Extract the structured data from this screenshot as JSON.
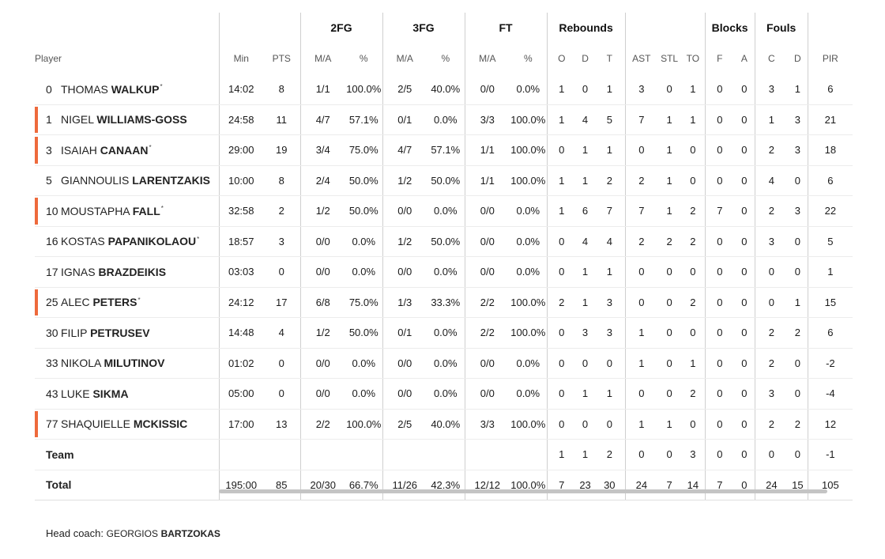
{
  "header": {
    "groups": {
      "fg2": "2FG",
      "fg3": "3FG",
      "ft": "FT",
      "rebounds": "Rebounds",
      "blocks": "Blocks",
      "fouls": "Fouls"
    },
    "columns": {
      "player": "Player",
      "min": "Min",
      "pts": "PTS",
      "fg2_ma": "M/A",
      "fg2_pct": "%",
      "fg3_ma": "M/A",
      "fg3_pct": "%",
      "ft_ma": "M/A",
      "ft_pct": "%",
      "reb_o": "O",
      "reb_d": "D",
      "reb_t": "T",
      "ast": "AST",
      "stl": "STL",
      "to": "TO",
      "blk_f": "F",
      "blk_a": "A",
      "foul_c": "C",
      "foul_d": "D",
      "pir": "PIR"
    }
  },
  "players": [
    {
      "num": "0",
      "first": "THOMAS",
      "last": "WALKUP",
      "star": "*",
      "starter": false,
      "min": "14:02",
      "pts": "8",
      "fg2_ma": "1/1",
      "fg2_pct": "100.0%",
      "fg3_ma": "2/5",
      "fg3_pct": "40.0%",
      "ft_ma": "0/0",
      "ft_pct": "0.0%",
      "reb_o": "1",
      "reb_d": "0",
      "reb_t": "1",
      "ast": "3",
      "stl": "0",
      "to": "1",
      "blk_f": "0",
      "blk_a": "0",
      "foul_c": "3",
      "foul_d": "1",
      "pir": "6"
    },
    {
      "num": "1",
      "first": "NIGEL",
      "last": "WILLIAMS-GOSS",
      "star": "",
      "starter": true,
      "min": "24:58",
      "pts": "11",
      "fg2_ma": "4/7",
      "fg2_pct": "57.1%",
      "fg3_ma": "0/1",
      "fg3_pct": "0.0%",
      "ft_ma": "3/3",
      "ft_pct": "100.0%",
      "reb_o": "1",
      "reb_d": "4",
      "reb_t": "5",
      "ast": "7",
      "stl": "1",
      "to": "1",
      "blk_f": "0",
      "blk_a": "0",
      "foul_c": "1",
      "foul_d": "3",
      "pir": "21"
    },
    {
      "num": "3",
      "first": "ISAIAH",
      "last": "CANAAN",
      "star": "*",
      "starter": true,
      "min": "29:00",
      "pts": "19",
      "fg2_ma": "3/4",
      "fg2_pct": "75.0%",
      "fg3_ma": "4/7",
      "fg3_pct": "57.1%",
      "ft_ma": "1/1",
      "ft_pct": "100.0%",
      "reb_o": "0",
      "reb_d": "1",
      "reb_t": "1",
      "ast": "0",
      "stl": "1",
      "to": "0",
      "blk_f": "0",
      "blk_a": "0",
      "foul_c": "2",
      "foul_d": "3",
      "pir": "18"
    },
    {
      "num": "5",
      "first": "GIANNOULIS",
      "last": "LARENTZAKIS",
      "star": "",
      "starter": false,
      "min": "10:00",
      "pts": "8",
      "fg2_ma": "2/4",
      "fg2_pct": "50.0%",
      "fg3_ma": "1/2",
      "fg3_pct": "50.0%",
      "ft_ma": "1/1",
      "ft_pct": "100.0%",
      "reb_o": "1",
      "reb_d": "1",
      "reb_t": "2",
      "ast": "2",
      "stl": "1",
      "to": "0",
      "blk_f": "0",
      "blk_a": "0",
      "foul_c": "4",
      "foul_d": "0",
      "pir": "6"
    },
    {
      "num": "10",
      "first": "MOUSTAPHA",
      "last": "FALL",
      "star": "*",
      "starter": true,
      "min": "32:58",
      "pts": "2",
      "fg2_ma": "1/2",
      "fg2_pct": "50.0%",
      "fg3_ma": "0/0",
      "fg3_pct": "0.0%",
      "ft_ma": "0/0",
      "ft_pct": "0.0%",
      "reb_o": "1",
      "reb_d": "6",
      "reb_t": "7",
      "ast": "7",
      "stl": "1",
      "to": "2",
      "blk_f": "7",
      "blk_a": "0",
      "foul_c": "2",
      "foul_d": "3",
      "pir": "22"
    },
    {
      "num": "16",
      "first": "KOSTAS",
      "last": "PAPANIKOLAOU",
      "star": "*",
      "starter": false,
      "min": "18:57",
      "pts": "3",
      "fg2_ma": "0/0",
      "fg2_pct": "0.0%",
      "fg3_ma": "1/2",
      "fg3_pct": "50.0%",
      "ft_ma": "0/0",
      "ft_pct": "0.0%",
      "reb_o": "0",
      "reb_d": "4",
      "reb_t": "4",
      "ast": "2",
      "stl": "2",
      "to": "2",
      "blk_f": "0",
      "blk_a": "0",
      "foul_c": "3",
      "foul_d": "0",
      "pir": "5"
    },
    {
      "num": "17",
      "first": "IGNAS",
      "last": "BRAZDEIKIS",
      "star": "",
      "starter": false,
      "min": "03:03",
      "pts": "0",
      "fg2_ma": "0/0",
      "fg2_pct": "0.0%",
      "fg3_ma": "0/0",
      "fg3_pct": "0.0%",
      "ft_ma": "0/0",
      "ft_pct": "0.0%",
      "reb_o": "0",
      "reb_d": "1",
      "reb_t": "1",
      "ast": "0",
      "stl": "0",
      "to": "0",
      "blk_f": "0",
      "blk_a": "0",
      "foul_c": "0",
      "foul_d": "0",
      "pir": "1"
    },
    {
      "num": "25",
      "first": "ALEC",
      "last": "PETERS",
      "star": "*",
      "starter": true,
      "min": "24:12",
      "pts": "17",
      "fg2_ma": "6/8",
      "fg2_pct": "75.0%",
      "fg3_ma": "1/3",
      "fg3_pct": "33.3%",
      "ft_ma": "2/2",
      "ft_pct": "100.0%",
      "reb_o": "2",
      "reb_d": "1",
      "reb_t": "3",
      "ast": "0",
      "stl": "0",
      "to": "2",
      "blk_f": "0",
      "blk_a": "0",
      "foul_c": "0",
      "foul_d": "1",
      "pir": "15"
    },
    {
      "num": "30",
      "first": "FILIP",
      "last": "PETRUSEV",
      "star": "",
      "starter": false,
      "min": "14:48",
      "pts": "4",
      "fg2_ma": "1/2",
      "fg2_pct": "50.0%",
      "fg3_ma": "0/1",
      "fg3_pct": "0.0%",
      "ft_ma": "2/2",
      "ft_pct": "100.0%",
      "reb_o": "0",
      "reb_d": "3",
      "reb_t": "3",
      "ast": "1",
      "stl": "0",
      "to": "0",
      "blk_f": "0",
      "blk_a": "0",
      "foul_c": "2",
      "foul_d": "2",
      "pir": "6"
    },
    {
      "num": "33",
      "first": "NIKOLA",
      "last": "MILUTINOV",
      "star": "",
      "starter": false,
      "min": "01:02",
      "pts": "0",
      "fg2_ma": "0/0",
      "fg2_pct": "0.0%",
      "fg3_ma": "0/0",
      "fg3_pct": "0.0%",
      "ft_ma": "0/0",
      "ft_pct": "0.0%",
      "reb_o": "0",
      "reb_d": "0",
      "reb_t": "0",
      "ast": "1",
      "stl": "0",
      "to": "1",
      "blk_f": "0",
      "blk_a": "0",
      "foul_c": "2",
      "foul_d": "0",
      "pir": "-2"
    },
    {
      "num": "43",
      "first": "LUKE",
      "last": "SIKMA",
      "star": "",
      "starter": false,
      "min": "05:00",
      "pts": "0",
      "fg2_ma": "0/0",
      "fg2_pct": "0.0%",
      "fg3_ma": "0/0",
      "fg3_pct": "0.0%",
      "ft_ma": "0/0",
      "ft_pct": "0.0%",
      "reb_o": "0",
      "reb_d": "1",
      "reb_t": "1",
      "ast": "0",
      "stl": "0",
      "to": "2",
      "blk_f": "0",
      "blk_a": "0",
      "foul_c": "3",
      "foul_d": "0",
      "pir": "-4"
    },
    {
      "num": "77",
      "first": "SHAQUIELLE",
      "last": "MCKISSIC",
      "star": "",
      "starter": true,
      "min": "17:00",
      "pts": "13",
      "fg2_ma": "2/2",
      "fg2_pct": "100.0%",
      "fg3_ma": "2/5",
      "fg3_pct": "40.0%",
      "ft_ma": "3/3",
      "ft_pct": "100.0%",
      "reb_o": "0",
      "reb_d": "0",
      "reb_t": "0",
      "ast": "1",
      "stl": "1",
      "to": "0",
      "blk_f": "0",
      "blk_a": "0",
      "foul_c": "2",
      "foul_d": "2",
      "pir": "12"
    }
  ],
  "team": {
    "label": "Team",
    "min": "",
    "pts": "",
    "fg2_ma": "",
    "fg2_pct": "",
    "fg3_ma": "",
    "fg3_pct": "",
    "ft_ma": "",
    "ft_pct": "",
    "reb_o": "1",
    "reb_d": "1",
    "reb_t": "2",
    "ast": "0",
    "stl": "0",
    "to": "3",
    "blk_f": "0",
    "blk_a": "0",
    "foul_c": "0",
    "foul_d": "0",
    "pir": "-1"
  },
  "total": {
    "label": "Total",
    "min": "195:00",
    "pts": "85",
    "fg2_ma": "20/30",
    "fg2_pct": "66.7%",
    "fg3_ma": "11/26",
    "fg3_pct": "42.3%",
    "ft_ma": "12/12",
    "ft_pct": "100.0%",
    "reb_o": "7",
    "reb_d": "23",
    "reb_t": "30",
    "ast": "24",
    "stl": "7",
    "to": "14",
    "blk_f": "7",
    "blk_a": "0",
    "foul_c": "24",
    "foul_d": "15",
    "pir": "105"
  },
  "coach": {
    "label": "Head coach:",
    "first": "GEORGIOS",
    "last": "BARTZOKAS"
  },
  "colors": {
    "starter_marker": "#ee6a3c",
    "divider": "#cfcfcf",
    "scrollbar": "#c4c4c4"
  }
}
